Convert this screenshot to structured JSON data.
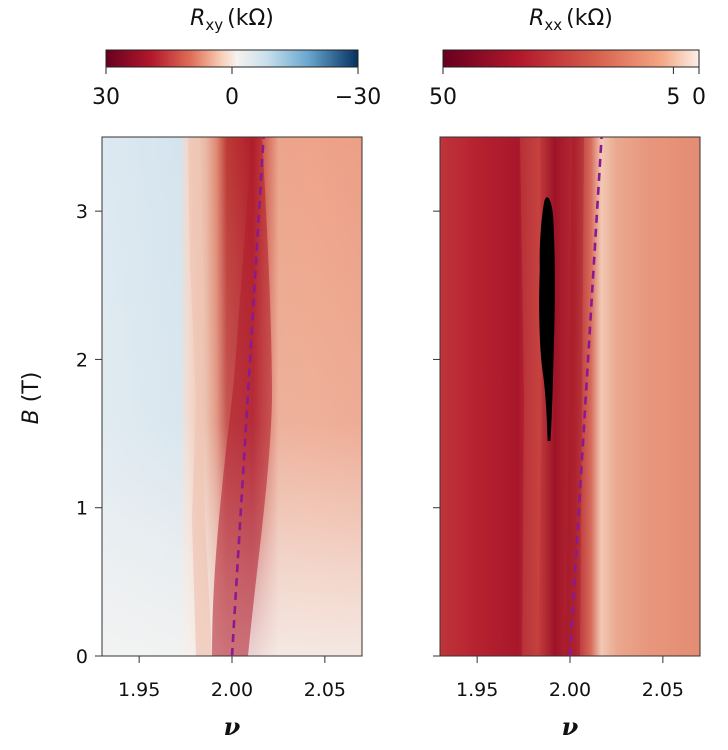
{
  "chart_data": [
    {
      "type": "heatmap",
      "colorbar": {
        "quantity": "R",
        "subscript": "xy",
        "unit": "(kΩ)",
        "ticks": [
          "30",
          "0",
          "−30"
        ],
        "tick_values": [
          30,
          0,
          -30
        ],
        "range": [
          30,
          -30
        ],
        "placement": "top"
      },
      "xlabel": "ν",
      "ylabel_var": "B",
      "ylabel_unit": " (T)",
      "xlim": [
        1.93,
        2.07
      ],
      "ylim": [
        0,
        3.5
      ],
      "xticks": [
        {
          "value": 1.95,
          "label": "1.95"
        },
        {
          "value": 2.0,
          "label": "2.00"
        },
        {
          "value": 2.05,
          "label": "2.05"
        }
      ],
      "yticks": [
        {
          "value": 0,
          "label": "0"
        },
        {
          "value": 1,
          "label": "1"
        },
        {
          "value": 2,
          "label": "2"
        },
        {
          "value": 3,
          "label": "3"
        }
      ],
      "guide_line": {
        "style": "dashed",
        "color": "#8b1a8f",
        "points": [
          [
            2.0,
            0
          ],
          [
            2.017,
            3.5
          ]
        ]
      }
    },
    {
      "type": "heatmap",
      "colorbar": {
        "quantity": "R",
        "subscript": "xx",
        "unit": "(kΩ)",
        "ticks": [
          "50",
          "5",
          "0"
        ],
        "tick_values": [
          50,
          5,
          0
        ],
        "range": [
          50,
          0
        ],
        "placement": "top"
      },
      "xlabel": "ν",
      "xlim": [
        1.93,
        2.07
      ],
      "ylim": [
        0,
        3.5
      ],
      "xticks": [
        {
          "value": 1.95,
          "label": "1.95"
        },
        {
          "value": 2.0,
          "label": "2.00"
        },
        {
          "value": 2.05,
          "label": "2.05"
        }
      ],
      "yticks": [
        {
          "value": 0
        },
        {
          "value": 1
        },
        {
          "value": 2
        },
        {
          "value": 3
        }
      ],
      "guide_line": {
        "style": "dashed",
        "color": "#8b1a8f",
        "points": [
          [
            2.0,
            0
          ],
          [
            2.017,
            3.5
          ]
        ]
      },
      "saturated_region": {
        "color": "#000000",
        "x": [
          1.983,
          1.992
        ],
        "y": [
          1.45,
          3.1
        ]
      }
    }
  ]
}
